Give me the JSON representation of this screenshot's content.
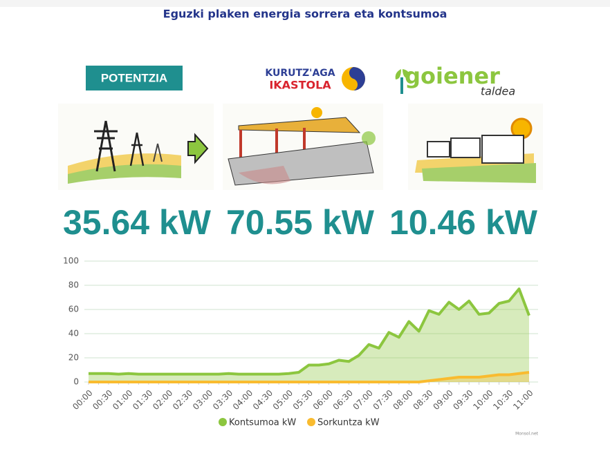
{
  "header": {
    "title": "Eguzki plaken energia sorrera eta kontsumoa"
  },
  "badge": "POTENTZIA",
  "logos": {
    "school": [
      "KURUTZ'AGA",
      "IKASTOLA"
    ],
    "coop": [
      "goiener",
      "taldea"
    ]
  },
  "readings": [
    "35.64 kW",
    "70.55 kW",
    "10.46 kW"
  ],
  "footer": "Monsol.net",
  "chart_data": {
    "type": "area",
    "categories": [
      "00:00",
      null,
      "00:30",
      null,
      "01:00",
      null,
      "01:30",
      null,
      "02:00",
      null,
      "02:30",
      null,
      "03:00",
      null,
      "03:30",
      null,
      "04:00",
      null,
      "04:30",
      null,
      "05:00",
      null,
      "05:30",
      null,
      "06:00",
      null,
      "06:30",
      null,
      "07:00",
      null,
      "07:30",
      null,
      "08:00",
      null,
      "08:30",
      null,
      "09:00",
      null,
      "09:30",
      null,
      "10:00",
      null,
      "10:30",
      null,
      "11:00"
    ],
    "series": [
      {
        "name": "Kontsumoa kW",
        "color": "#8cc63f",
        "values": [
          7,
          7,
          7,
          6.5,
          7,
          6.5,
          6.5,
          6.5,
          6.5,
          6.5,
          6.5,
          6.5,
          6.5,
          6.5,
          7,
          6.5,
          6.5,
          6.5,
          6.5,
          6.5,
          7,
          8,
          14,
          14,
          15,
          18,
          17,
          22,
          31,
          28,
          41,
          37,
          50,
          42,
          59,
          56,
          66,
          60,
          67,
          56,
          57,
          65,
          67,
          77,
          55
        ]
      },
      {
        "name": "Sorkuntza kW",
        "color": "#f9bb2f",
        "values": [
          0,
          0,
          0,
          0,
          0,
          0,
          0,
          0,
          0,
          0,
          0,
          0,
          0,
          0,
          0,
          0,
          0,
          0,
          0,
          0,
          0,
          0,
          0,
          0,
          0,
          0,
          0,
          0,
          0,
          0,
          0,
          0,
          0,
          0,
          1,
          2,
          3,
          4,
          4,
          4,
          5,
          6,
          6,
          7,
          8
        ]
      }
    ],
    "ylim": [
      0,
      100
    ],
    "yticks": [
      0,
      20,
      40,
      60,
      80,
      100
    ],
    "grid": true
  }
}
